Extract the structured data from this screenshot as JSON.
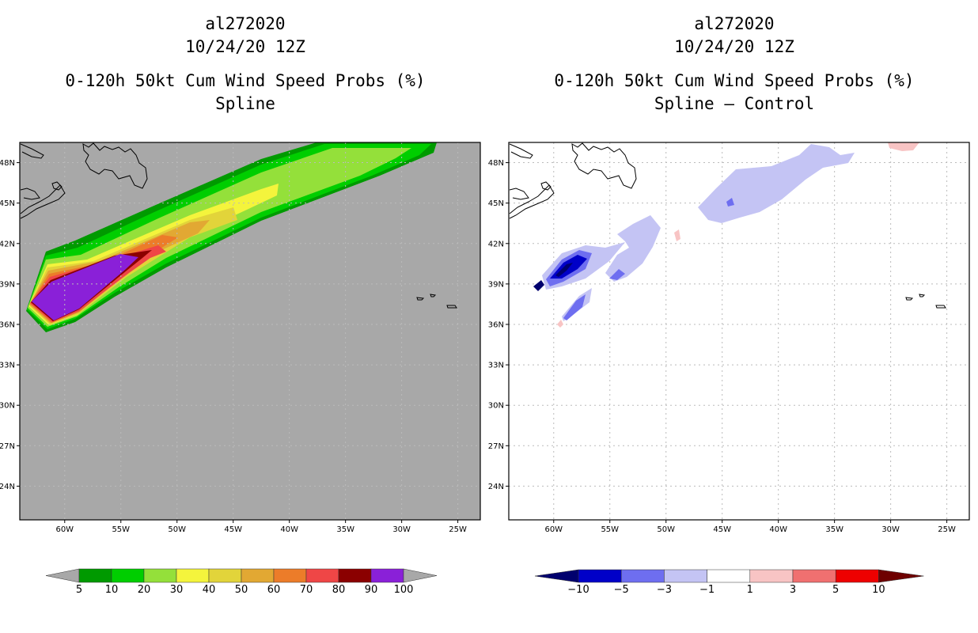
{
  "left_panel": {
    "storm": "al272020",
    "datetime": "10/24/20 12Z",
    "product": "0-120h 50kt Cum Wind Speed Probs (%)",
    "subtitle": "Spline",
    "colorbar": {
      "colors": [
        "#009a00",
        "#00ce00",
        "#94e03a",
        "#f4f43c",
        "#e2d43a",
        "#e2a833",
        "#ec7c29",
        "#ef4646",
        "#8b0000",
        "#8a20d8"
      ],
      "labels": [
        "5",
        "10",
        "20",
        "30",
        "40",
        "50",
        "60",
        "70",
        "80",
        "90",
        "100"
      ]
    }
  },
  "right_panel": {
    "storm": "al272020",
    "datetime": "10/24/20 12Z",
    "product": "0-120h 50kt Cum Wind Speed Probs (%)",
    "subtitle": "Spline – Control",
    "colorbar": {
      "colors": [
        "#0000c8",
        "#6e6ef0",
        "#c4c4f4",
        "#ffffff",
        "#f8c4c4",
        "#f07070",
        "#ee0000"
      ],
      "low_color": "#00006e",
      "high_color": "#6e0000",
      "labels": [
        "−10",
        "−5",
        "−3",
        "−1",
        "1",
        "3",
        "5",
        "10"
      ]
    }
  },
  "map": {
    "lat_labels": [
      "48N",
      "45N",
      "42N",
      "39N",
      "36N",
      "33N",
      "30N",
      "27N",
      "24N"
    ],
    "lat_values": [
      48,
      45,
      42,
      39,
      36,
      33,
      30,
      27,
      24
    ],
    "lon_labels": [
      "60W",
      "55W",
      "50W",
      "45W",
      "40W",
      "35W",
      "30W",
      "25W"
    ],
    "lon_values": [
      -60,
      -55,
      -50,
      -45,
      -40,
      -35,
      -30,
      -25
    ],
    "lat_range": [
      21.5,
      49.5
    ],
    "lon_range": [
      -64,
      -23
    ],
    "ocean_color": "#a8a8a8",
    "grid_color": "#bbbbbb"
  }
}
